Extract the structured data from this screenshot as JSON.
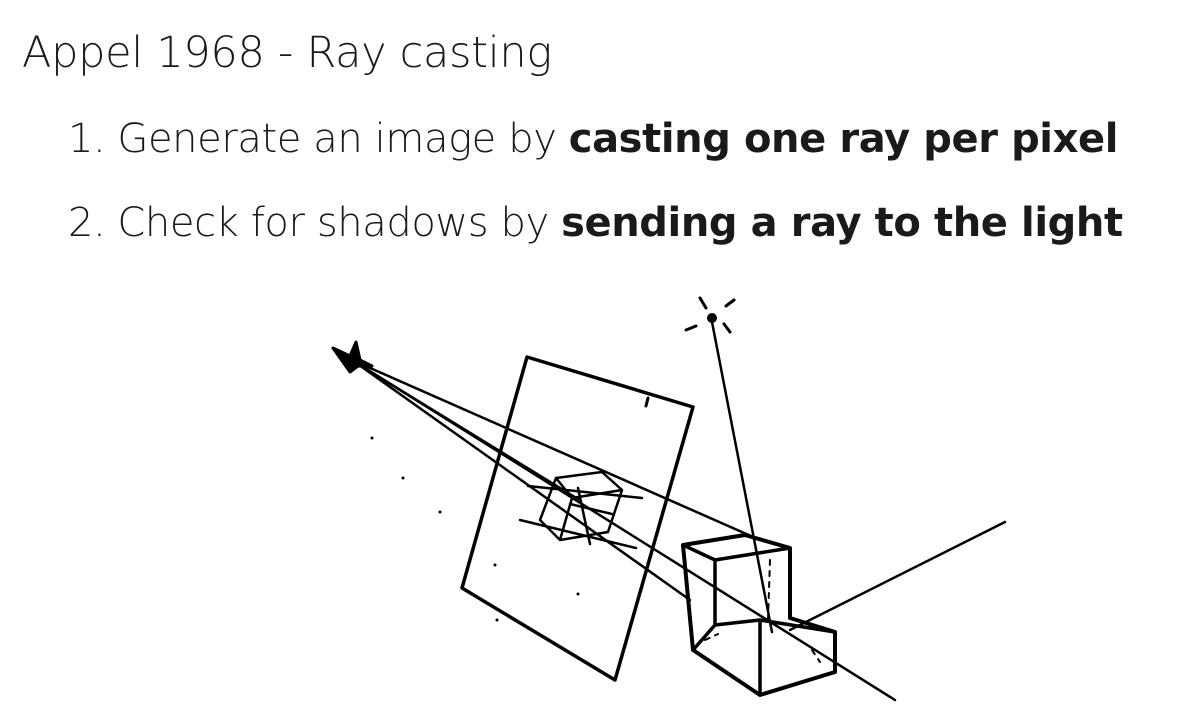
{
  "slide": {
    "title": "Appel 1968 - Ray casting",
    "items": [
      {
        "number": "1.",
        "text": "Generate an image by ",
        "bold": "casting one ray per pixel"
      },
      {
        "number": "2.",
        "text": "Check for shadows by ",
        "bold": "sending a ray to the light"
      }
    ]
  },
  "figure": {
    "type": "hand-drawn sketch",
    "elements": [
      "eye-point",
      "image-plane",
      "projected-box",
      "light-source",
      "box-object",
      "rays"
    ]
  }
}
